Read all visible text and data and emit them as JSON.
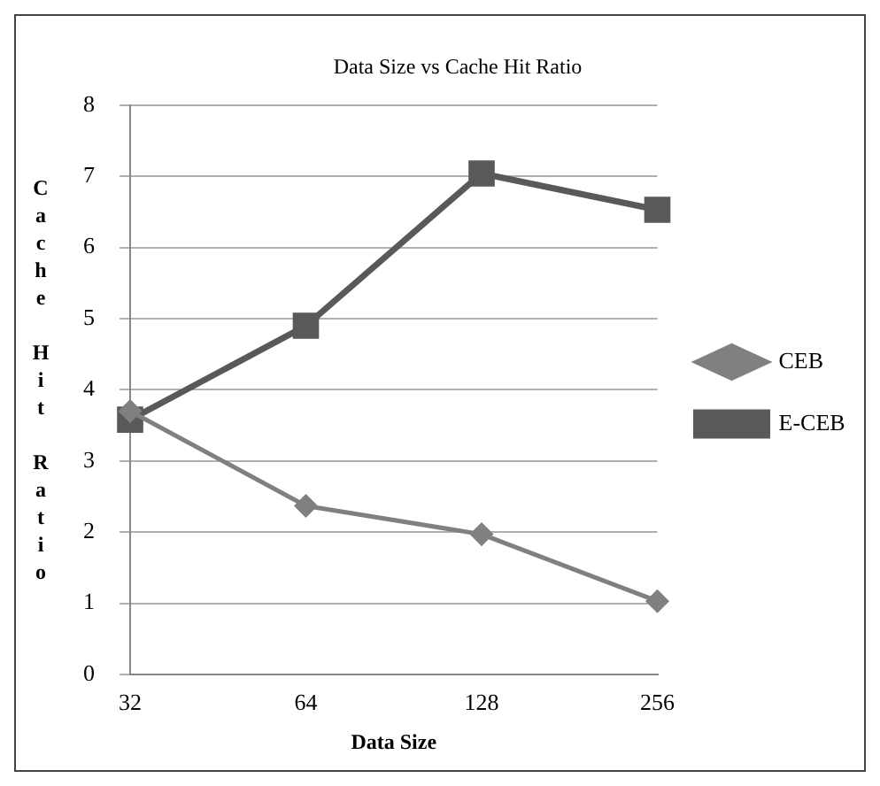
{
  "chart_data": {
    "type": "line",
    "title": "Data Size vs Cache Hit Ratio",
    "xlabel": "Data Size",
    "ylabel": "Cache Hit Ratio",
    "categories": [
      "32",
      "64",
      "128",
      "256"
    ],
    "series": [
      {
        "name": "CEB",
        "color": "#808080",
        "values": [
          3.7,
          2.37,
          1.97,
          1.03
        ],
        "marker": "diamond"
      },
      {
        "name": "E-CEB",
        "color": "#595959",
        "values": [
          3.58,
          4.9,
          7.04,
          6.53
        ],
        "marker": "square"
      }
    ],
    "ylim": [
      0,
      8
    ],
    "yticks": [
      0,
      1,
      2,
      3,
      4,
      5,
      6,
      7,
      8
    ],
    "grid": "y",
    "legend": "right"
  }
}
